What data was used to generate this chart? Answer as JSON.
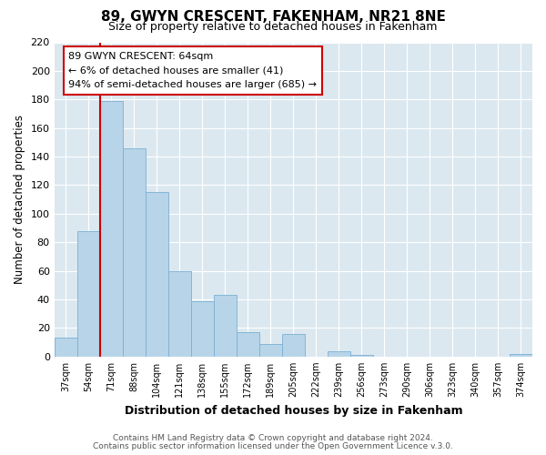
{
  "title": "89, GWYN CRESCENT, FAKENHAM, NR21 8NE",
  "subtitle": "Size of property relative to detached houses in Fakenham",
  "xlabel": "Distribution of detached houses by size in Fakenham",
  "ylabel": "Number of detached properties",
  "categories": [
    "37sqm",
    "54sqm",
    "71sqm",
    "88sqm",
    "104sqm",
    "121sqm",
    "138sqm",
    "155sqm",
    "172sqm",
    "189sqm",
    "205sqm",
    "222sqm",
    "239sqm",
    "256sqm",
    "273sqm",
    "290sqm",
    "306sqm",
    "323sqm",
    "340sqm",
    "357sqm",
    "374sqm"
  ],
  "values": [
    13,
    88,
    179,
    146,
    115,
    60,
    39,
    43,
    17,
    9,
    16,
    0,
    4,
    1,
    0,
    0,
    0,
    0,
    0,
    0,
    2
  ],
  "bar_color": "#b8d4e8",
  "bar_edge_color": "#7ab0d4",
  "highlight_line_color": "#cc0000",
  "ylim": [
    0,
    220
  ],
  "yticks": [
    0,
    20,
    40,
    60,
    80,
    100,
    120,
    140,
    160,
    180,
    200,
    220
  ],
  "annotation_box_text": "89 GWYN CRESCENT: 64sqm\n← 6% of detached houses are smaller (41)\n94% of semi-detached houses are larger (685) →",
  "footnote1": "Contains HM Land Registry data © Crown copyright and database right 2024.",
  "footnote2": "Contains public sector information licensed under the Open Government Licence v.3.0.",
  "plot_bg_color": "#dce8f0",
  "background_color": "#ffffff",
  "grid_color": "#ffffff"
}
